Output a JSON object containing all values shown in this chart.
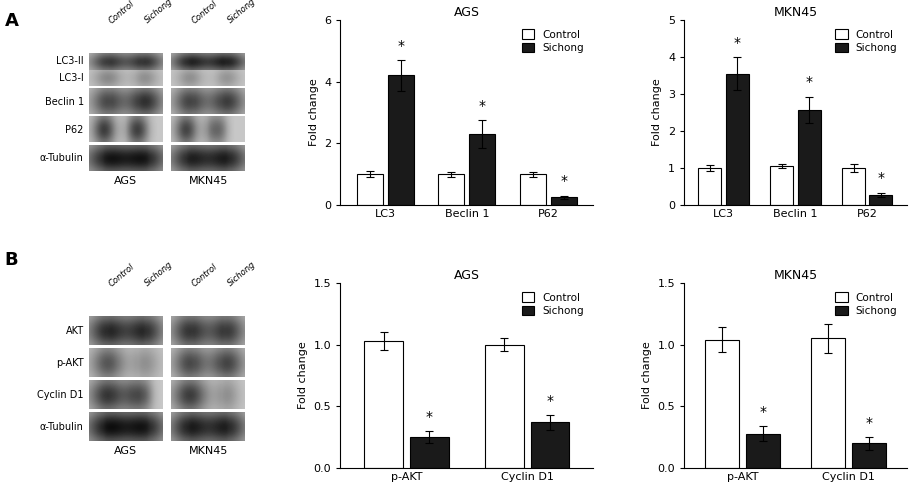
{
  "panel_A": {
    "AGS": {
      "title": "AGS",
      "categories": [
        "LC3",
        "Beclin 1",
        "P62"
      ],
      "control_values": [
        1.0,
        1.0,
        1.0
      ],
      "sichong_values": [
        4.2,
        2.3,
        0.25
      ],
      "control_errors": [
        0.1,
        0.08,
        0.08
      ],
      "sichong_errors": [
        0.5,
        0.45,
        0.05
      ],
      "ylim": [
        0,
        6
      ],
      "yticks": [
        0,
        2,
        4,
        6
      ],
      "ylabel": "Fold change"
    },
    "MKN45": {
      "title": "MKN45",
      "categories": [
        "LC3",
        "Beclin 1",
        "P62"
      ],
      "control_values": [
        1.0,
        1.05,
        1.0
      ],
      "sichong_values": [
        3.55,
        2.58,
        0.28
      ],
      "control_errors": [
        0.08,
        0.06,
        0.1
      ],
      "sichong_errors": [
        0.45,
        0.35,
        0.05
      ],
      "ylim": [
        0,
        5
      ],
      "yticks": [
        0,
        1,
        2,
        3,
        4,
        5
      ],
      "ylabel": "Fold change"
    }
  },
  "panel_B": {
    "AGS": {
      "title": "AGS",
      "categories": [
        "p-AKT",
        "Cyclin D1"
      ],
      "control_values": [
        1.03,
        1.0
      ],
      "sichong_values": [
        0.25,
        0.37
      ],
      "control_errors": [
        0.07,
        0.05
      ],
      "sichong_errors": [
        0.05,
        0.06
      ],
      "ylim": [
        0,
        1.5
      ],
      "yticks": [
        0.0,
        0.5,
        1.0,
        1.5
      ],
      "ylabel": "Fold change"
    },
    "MKN45": {
      "title": "MKN45",
      "categories": [
        "p-AKT",
        "Cyclin D1"
      ],
      "control_values": [
        1.04,
        1.05
      ],
      "sichong_values": [
        0.28,
        0.2
      ],
      "control_errors": [
        0.1,
        0.12
      ],
      "sichong_errors": [
        0.06,
        0.05
      ],
      "ylim": [
        0,
        1.5
      ],
      "yticks": [
        0.0,
        0.5,
        1.0,
        1.5
      ],
      "ylabel": "Fold change"
    }
  },
  "colors": {
    "control": "#ffffff",
    "sichong": "#1a1a1a",
    "bar_edge": "#000000",
    "background": "#ffffff",
    "blot_bg": "#c8c8c8"
  },
  "legend": {
    "control_label": "Control",
    "sichong_label": "Sichong"
  },
  "blot_labels_A": [
    "LC3-I",
    "LC3-II",
    "Beclin 1",
    "P62",
    "α-Tubulin"
  ],
  "blot_labels_B": [
    "AKT",
    "p-AKT",
    "Cyclin D1",
    "α-Tubulin"
  ],
  "blot_cell_labels": [
    "AGS",
    "MKN45"
  ],
  "col_labels": [
    "Control",
    "Sichong",
    "Control",
    "Sichong"
  ]
}
